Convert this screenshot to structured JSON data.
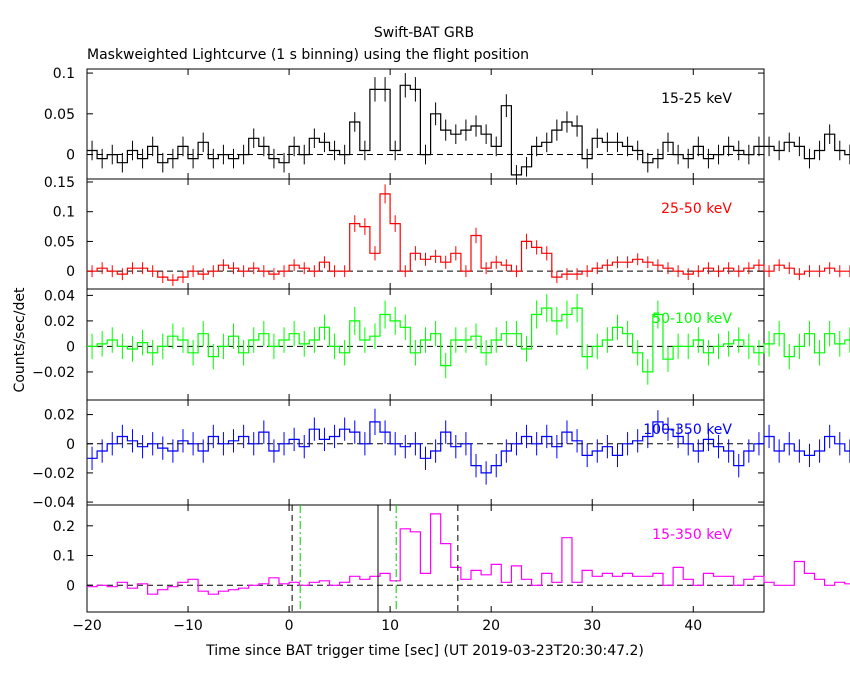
{
  "chart_data": {
    "type": "line",
    "title": "Swift-BAT GRB",
    "subtitle": "Maskweighted Lightcurve (1 s binning) using the flight position",
    "xlabel": "Time since BAT trigger time [sec] (UT 2019-03-23T20:30:47.2)",
    "ylabel": "Counts/sec/det",
    "xlim": [
      -20,
      47
    ],
    "x_ticks": [
      -20,
      -10,
      0,
      10,
      20,
      30,
      40
    ],
    "bin_width": 1,
    "x_start": -20,
    "markers": {
      "solid": [
        8.8
      ],
      "dashed": [
        0.3,
        16.7
      ],
      "dashdot": [
        1.1,
        10.6
      ]
    },
    "panels": [
      {
        "name": "15-25 keV",
        "color": "#000000",
        "ylim": [
          -0.03,
          0.105
        ],
        "y_ticks": [
          0.1,
          0.05,
          0
        ],
        "y_ticklabels": [
          "0.1",
          "0.05",
          "0"
        ],
        "values": [
          0.005,
          -0.005,
          0.0,
          -0.01,
          0.005,
          -0.005,
          0.01,
          -0.01,
          -0.005,
          0.01,
          -0.005,
          0.015,
          -0.005,
          0.0,
          -0.005,
          0.0,
          0.02,
          0.01,
          -0.005,
          -0.01,
          0.01,
          0.0,
          0.02,
          0.015,
          0.005,
          0.0,
          0.04,
          0.005,
          0.08,
          0.08,
          0.005,
          0.085,
          0.08,
          0.0,
          0.05,
          0.03,
          0.025,
          0.03,
          0.035,
          0.025,
          0.01,
          0.06,
          -0.025,
          -0.015,
          0.01,
          0.015,
          0.03,
          0.04,
          0.035,
          -0.005,
          0.02,
          0.015,
          0.015,
          0.01,
          0.005,
          -0.01,
          -0.005,
          0.015,
          0.0,
          -0.005,
          0.01,
          -0.005,
          0.0,
          0.01,
          0.005,
          0.0,
          0.01,
          0.01,
          0.005,
          0.015,
          0.01,
          -0.005,
          0.005,
          0.025,
          0.005,
          0.0,
          -0.005,
          0.005,
          0.005,
          0.0,
          0.005,
          0.01,
          0.015,
          0.01
        ],
        "errors": [
          0.012,
          0.012,
          0.012,
          0.012,
          0.012,
          0.012,
          0.012,
          0.012,
          0.012,
          0.012,
          0.012,
          0.012,
          0.012,
          0.012,
          0.012,
          0.012,
          0.012,
          0.012,
          0.012,
          0.012,
          0.012,
          0.012,
          0.012,
          0.012,
          0.012,
          0.012,
          0.012,
          0.012,
          0.015,
          0.015,
          0.012,
          0.015,
          0.015,
          0.012,
          0.014,
          0.013,
          0.012,
          0.013,
          0.013,
          0.012,
          0.012,
          0.014,
          0.012,
          0.012,
          0.012,
          0.012,
          0.013,
          0.013,
          0.013,
          0.012,
          0.012,
          0.012,
          0.012,
          0.012,
          0.012,
          0.012,
          0.012,
          0.012,
          0.012,
          0.012,
          0.012,
          0.012,
          0.012,
          0.012,
          0.012,
          0.012,
          0.012,
          0.012,
          0.012,
          0.012,
          0.012,
          0.012,
          0.012,
          0.012,
          0.012,
          0.012,
          0.012,
          0.012,
          0.012,
          0.012,
          0.012,
          0.012,
          0.012,
          0.012
        ]
      },
      {
        "name": "25-50 keV",
        "color": "#ff0000",
        "ylim": [
          -0.03,
          0.155
        ],
        "y_ticks": [
          0.15,
          0.1,
          0.05,
          0
        ],
        "y_ticklabels": [
          "0.15",
          "0.1",
          "0.05",
          "0"
        ],
        "values": [
          0.0,
          0.005,
          0.0,
          -0.005,
          0.005,
          0.005,
          0.0,
          -0.01,
          -0.015,
          -0.01,
          0.0,
          -0.005,
          0.0,
          0.01,
          0.005,
          0.0,
          0.005,
          0.0,
          -0.005,
          0.0,
          0.01,
          0.005,
          0.0,
          0.015,
          0.0,
          0.0,
          0.08,
          0.075,
          0.03,
          0.13,
          0.08,
          0.0,
          0.03,
          0.02,
          0.025,
          0.015,
          0.03,
          0.0,
          0.06,
          0.005,
          0.015,
          0.01,
          0.0,
          0.05,
          0.04,
          0.03,
          -0.01,
          -0.005,
          -0.005,
          0.0,
          0.005,
          0.01,
          0.015,
          0.015,
          0.02,
          0.015,
          0.01,
          0.005,
          0.0,
          -0.005,
          0.0,
          0.005,
          0.0,
          0.005,
          0.0,
          0.005,
          0.01,
          0.0,
          0.01,
          0.005,
          -0.005,
          0.0,
          0.0,
          0.005,
          0.0,
          0.0,
          0.005,
          0.0,
          -0.005,
          -0.01,
          0.0,
          -0.005,
          0.0,
          0.01
        ],
        "errors": [
          0.01,
          0.01,
          0.01,
          0.01,
          0.01,
          0.01,
          0.01,
          0.01,
          0.01,
          0.01,
          0.01,
          0.01,
          0.01,
          0.01,
          0.01,
          0.01,
          0.01,
          0.01,
          0.01,
          0.01,
          0.01,
          0.01,
          0.01,
          0.01,
          0.01,
          0.01,
          0.014,
          0.014,
          0.012,
          0.016,
          0.014,
          0.01,
          0.012,
          0.011,
          0.011,
          0.011,
          0.012,
          0.01,
          0.013,
          0.01,
          0.011,
          0.01,
          0.01,
          0.013,
          0.012,
          0.012,
          0.01,
          0.01,
          0.01,
          0.01,
          0.01,
          0.01,
          0.01,
          0.01,
          0.01,
          0.01,
          0.01,
          0.01,
          0.01,
          0.01,
          0.01,
          0.01,
          0.01,
          0.01,
          0.01,
          0.01,
          0.01,
          0.01,
          0.01,
          0.01,
          0.01,
          0.01,
          0.01,
          0.01,
          0.01,
          0.01,
          0.01,
          0.01,
          0.01,
          0.01,
          0.01,
          0.01,
          0.01,
          0.01
        ]
      },
      {
        "name": "50-100 keV",
        "color": "#00ff00",
        "ylim": [
          -0.042,
          0.045
        ],
        "y_ticks": [
          0.04,
          0.02,
          0,
          -0.02
        ],
        "y_ticklabels": [
          "0.04",
          "0.02",
          "0",
          "−0.02"
        ],
        "values": [
          0.0,
          0.002,
          0.005,
          0.0,
          -0.002,
          0.003,
          -0.005,
          0.0,
          0.008,
          0.005,
          -0.005,
          0.01,
          -0.008,
          0.0,
          0.008,
          -0.005,
          0.005,
          0.01,
          0.0,
          0.005,
          0.01,
          0.002,
          0.005,
          0.015,
          0.0,
          -0.005,
          0.02,
          0.005,
          0.008,
          0.025,
          0.02,
          0.015,
          -0.005,
          0.005,
          0.01,
          -0.015,
          0.005,
          0.005,
          0.008,
          -0.005,
          0.005,
          0.01,
          0.01,
          -0.002,
          0.025,
          0.03,
          0.02,
          0.025,
          0.03,
          -0.008,
          0.0,
          0.005,
          0.015,
          0.01,
          -0.005,
          -0.02,
          0.025,
          -0.01,
          0.0,
          0.0,
          0.005,
          -0.005,
          0.0,
          0.002,
          0.005,
          0.0,
          -0.005,
          0.002,
          0.01,
          -0.008,
          0.0,
          0.01,
          -0.005,
          0.01,
          0.002,
          0.005,
          0.003,
          0.004,
          0.005,
          0.003,
          0.003,
          0.002,
          0.002,
          0.002
        ],
        "errors": [
          0.01,
          0.01,
          0.01,
          0.01,
          0.01,
          0.01,
          0.01,
          0.01,
          0.01,
          0.01,
          0.01,
          0.01,
          0.01,
          0.01,
          0.01,
          0.01,
          0.01,
          0.01,
          0.01,
          0.01,
          0.01,
          0.01,
          0.01,
          0.01,
          0.01,
          0.01,
          0.011,
          0.01,
          0.01,
          0.011,
          0.011,
          0.01,
          0.01,
          0.01,
          0.01,
          0.01,
          0.01,
          0.01,
          0.01,
          0.01,
          0.01,
          0.01,
          0.01,
          0.01,
          0.011,
          0.011,
          0.011,
          0.011,
          0.011,
          0.01,
          0.01,
          0.01,
          0.01,
          0.01,
          0.01,
          0.01,
          0.011,
          0.01,
          0.01,
          0.01,
          0.01,
          0.01,
          0.01,
          0.01,
          0.01,
          0.01,
          0.01,
          0.01,
          0.01,
          0.01,
          0.01,
          0.01,
          0.01,
          0.01,
          0.01,
          0.01,
          0.01,
          0.01,
          0.01,
          0.01,
          0.01,
          0.01,
          0.01,
          0.01
        ]
      },
      {
        "name": "100-350 keV",
        "color": "#0000ff",
        "ylim": [
          -0.042,
          0.03
        ],
        "y_ticks": [
          0.02,
          0,
          -0.02,
          -0.04
        ],
        "y_ticklabels": [
          "0.02",
          "0",
          "−0.02",
          "−0.04"
        ],
        "values": [
          -0.01,
          -0.005,
          0.0,
          0.005,
          0.002,
          -0.002,
          0.0,
          -0.003,
          -0.005,
          0.002,
          0.0,
          -0.005,
          0.005,
          0.0,
          0.002,
          0.005,
          0.0,
          0.008,
          -0.005,
          0.0,
          0.003,
          -0.002,
          0.01,
          0.003,
          0.005,
          0.01,
          0.008,
          0.0,
          0.015,
          0.008,
          0.0,
          -0.002,
          0.0,
          -0.01,
          -0.005,
          0.008,
          -0.002,
          0.0,
          -0.015,
          -0.02,
          -0.015,
          -0.005,
          0.0,
          0.005,
          0.0,
          0.005,
          -0.002,
          0.008,
          0.002,
          -0.008,
          -0.005,
          -0.002,
          -0.008,
          0.0,
          0.002,
          0.005,
          0.015,
          0.01,
          0.005,
          0.0,
          -0.005,
          0.003,
          -0.002,
          -0.005,
          -0.015,
          -0.005,
          0.0,
          0.005,
          -0.005,
          0.0,
          -0.005,
          -0.008,
          -0.005,
          0.005,
          0.0,
          -0.005,
          -0.008,
          -0.002,
          0.005,
          -0.005,
          -0.01,
          0.003,
          0.0,
          0.005
        ],
        "errors": [
          0.008,
          0.008,
          0.008,
          0.008,
          0.008,
          0.008,
          0.008,
          0.008,
          0.008,
          0.008,
          0.008,
          0.008,
          0.008,
          0.008,
          0.008,
          0.008,
          0.008,
          0.008,
          0.008,
          0.008,
          0.008,
          0.008,
          0.008,
          0.008,
          0.008,
          0.008,
          0.008,
          0.008,
          0.009,
          0.008,
          0.008,
          0.008,
          0.008,
          0.008,
          0.008,
          0.008,
          0.008,
          0.008,
          0.008,
          0.008,
          0.008,
          0.008,
          0.008,
          0.008,
          0.008,
          0.008,
          0.008,
          0.008,
          0.008,
          0.008,
          0.008,
          0.008,
          0.008,
          0.008,
          0.008,
          0.008,
          0.008,
          0.008,
          0.008,
          0.008,
          0.008,
          0.008,
          0.008,
          0.008,
          0.008,
          0.008,
          0.008,
          0.008,
          0.008,
          0.008,
          0.008,
          0.008,
          0.008,
          0.008,
          0.008,
          0.008,
          0.008,
          0.008,
          0.008,
          0.008,
          0.008,
          0.008,
          0.008,
          0.008
        ]
      },
      {
        "name": "15-350 keV",
        "color": "#ff00ff",
        "ylim": [
          -0.09,
          0.27
        ],
        "y_ticks": [
          0.2,
          0.1,
          0
        ],
        "y_ticklabels": [
          "0.2",
          "0.1",
          "0"
        ],
        "values": [
          -0.005,
          0.0,
          -0.005,
          0.01,
          -0.01,
          0.005,
          -0.03,
          -0.015,
          -0.005,
          0.01,
          0.02,
          -0.02,
          -0.03,
          -0.02,
          -0.015,
          -0.01,
          0.0,
          0.005,
          0.025,
          0.005,
          0.01,
          0.0,
          0.01,
          0.015,
          0.0,
          0.01,
          0.03,
          0.02,
          0.03,
          0.04,
          0.015,
          0.19,
          0.18,
          0.04,
          0.24,
          0.14,
          0.06,
          0.02,
          0.05,
          0.035,
          0.07,
          0.01,
          0.065,
          0.02,
          0.0,
          0.04,
          0.01,
          0.16,
          0.01,
          0.05,
          0.03,
          0.04,
          0.03,
          0.04,
          0.03,
          0.03,
          0.04,
          0.0,
          0.06,
          0.02,
          0.0,
          0.04,
          0.03,
          0.03,
          0.0,
          0.02,
          0.03,
          0.01,
          0.0,
          0.0,
          0.08,
          0.04,
          0.02,
          0.0,
          0.01,
          0.005,
          0.02,
          0.01,
          0.03,
          0.0,
          -0.005,
          0.01,
          0.0,
          0.02
        ]
      }
    ]
  }
}
